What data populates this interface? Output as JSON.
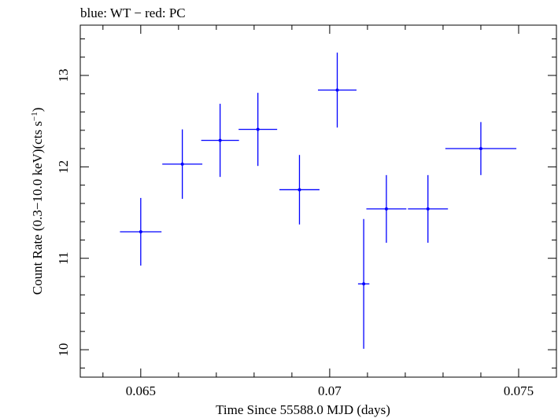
{
  "chart_data": {
    "type": "scatter",
    "title": "blue: WT − red: PC",
    "xlabel": "Time Since 55588.0 MJD (days)",
    "ylabel_main": "Count Rate (0.3−10.0 keV)(cts s",
    "ylabel_sup": "−1",
    "ylabel_close": ")",
    "xlim": [
      0.0634,
      0.076
    ],
    "ylim": [
      9.7,
      13.55
    ],
    "x_ticks": [
      0.065,
      0.07,
      0.075
    ],
    "x_tick_labels": [
      "0.065",
      "0.07",
      "0.075"
    ],
    "y_ticks": [
      10,
      11,
      12,
      13
    ],
    "y_tick_labels": [
      "10",
      "11",
      "12",
      "13"
    ],
    "grid": false,
    "series": [
      {
        "color": "#0000ff",
        "points": [
          {
            "x": 0.065,
            "y": 11.29,
            "xerr": 0.00055,
            "yerr": 0.37
          },
          {
            "x": 0.0661,
            "y": 12.03,
            "xerr": 0.00053,
            "yerr": 0.38
          },
          {
            "x": 0.0671,
            "y": 12.29,
            "xerr": 0.0005,
            "yerr": 0.4
          },
          {
            "x": 0.0681,
            "y": 12.41,
            "xerr": 0.00051,
            "yerr": 0.4
          },
          {
            "x": 0.0692,
            "y": 11.75,
            "xerr": 0.00053,
            "yerr": 0.38
          },
          {
            "x": 0.0702,
            "y": 12.84,
            "xerr": 0.00051,
            "yerr": 0.41
          },
          {
            "x": 0.0709,
            "y": 10.72,
            "xerr": 0.00015,
            "yerr": 0.71
          },
          {
            "x": 0.0715,
            "y": 11.54,
            "xerr": 0.00053,
            "yerr": 0.37
          },
          {
            "x": 0.0726,
            "y": 11.54,
            "xerr": 0.00053,
            "yerr": 0.37
          },
          {
            "x": 0.074,
            "y": 12.2,
            "xerr": 0.00094,
            "yerr": 0.29
          }
        ]
      }
    ]
  }
}
